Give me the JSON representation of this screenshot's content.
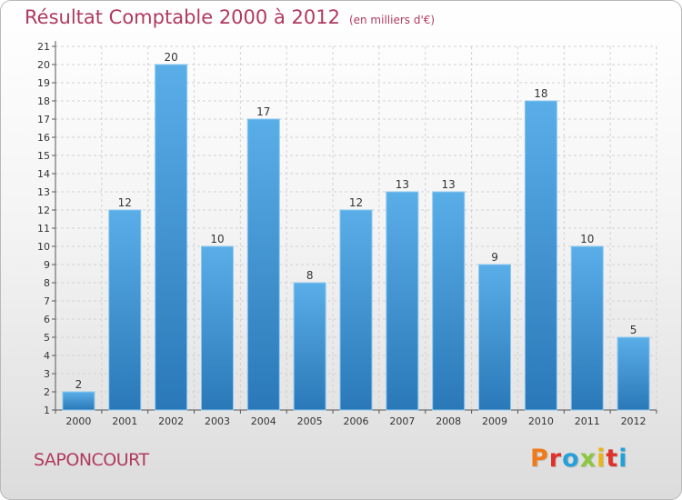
{
  "chart_data": {
    "type": "bar",
    "title": "Résultat Comptable 2000 à 2012",
    "unit_note": "(en milliers d'€)",
    "categories": [
      "2000",
      "2001",
      "2002",
      "2003",
      "2004",
      "2005",
      "2006",
      "2007",
      "2008",
      "2009",
      "2010",
      "2011",
      "2012"
    ],
    "values": [
      2,
      12,
      20,
      10,
      17,
      8,
      12,
      13,
      13,
      9,
      18,
      10,
      5
    ],
    "ylim": [
      1,
      21
    ],
    "yticks": [
      1,
      2,
      3,
      4,
      5,
      6,
      7,
      8,
      9,
      10,
      11,
      12,
      13,
      14,
      15,
      16,
      17,
      18,
      19,
      20,
      21
    ],
    "grid": true,
    "legend": "none",
    "bar_color_top": "#5aaee8",
    "bar_color_bottom": "#2a78b8"
  },
  "footer": {
    "commune": "SAPONCOURT",
    "brand": "Proxiti",
    "brand_colors": [
      "#f07a1a",
      "#e0302a",
      "#26a0d8",
      "#8dc63f",
      "#e8b614",
      "#e0302a",
      "#26a0d8"
    ]
  }
}
